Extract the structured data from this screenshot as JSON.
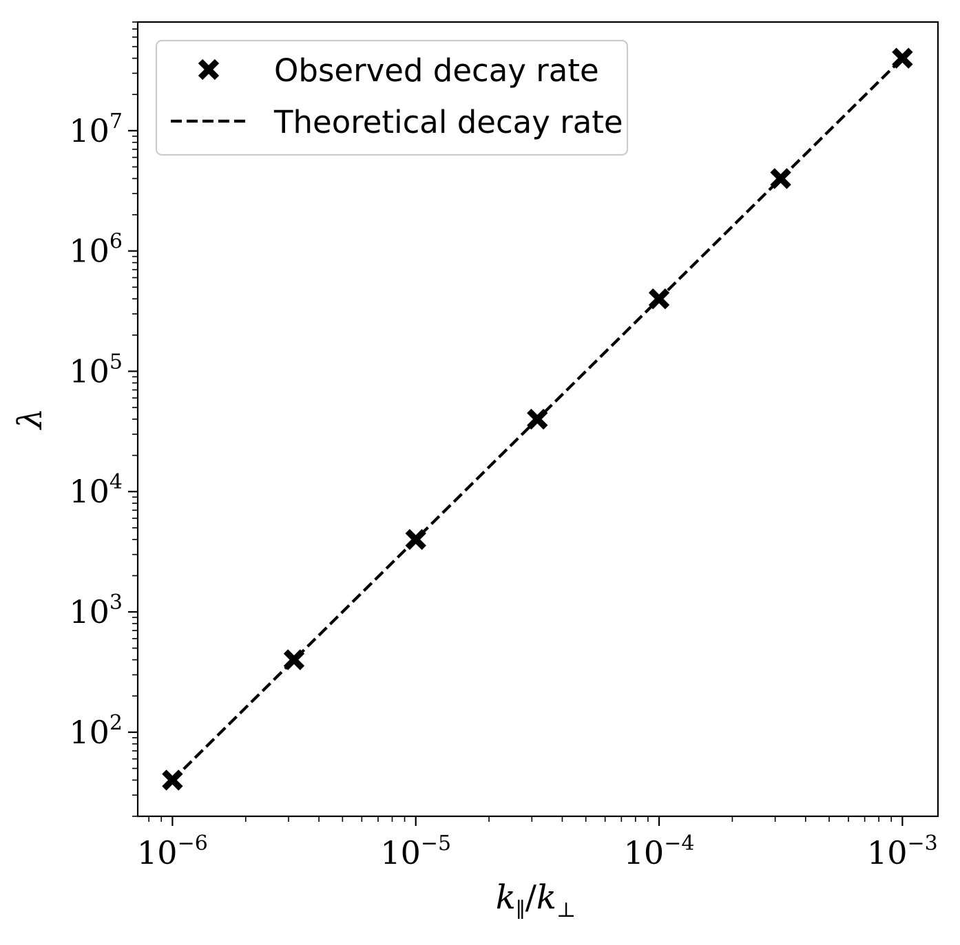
{
  "chart_data": {
    "type": "line",
    "xlabel": {
      "var1": "k",
      "sub1": "∥",
      "sep": "/",
      "var2": "k",
      "sub2": "⊥"
    },
    "ylabel": "λ",
    "xscale": "log",
    "yscale": "log",
    "xlim": [
      7.2e-07,
      0.0014
    ],
    "ylim": [
      20,
      80000000.0
    ],
    "grid": false,
    "legend_position": "top-left",
    "x_ticks": [
      {
        "value": 1e-06,
        "base": "10",
        "exp": "−6"
      },
      {
        "value": 1e-05,
        "base": "10",
        "exp": "−5"
      },
      {
        "value": 0.0001,
        "base": "10",
        "exp": "−4"
      },
      {
        "value": 0.001,
        "base": "10",
        "exp": "−3"
      }
    ],
    "y_ticks": [
      {
        "value": 100.0,
        "base": "10",
        "exp": "2"
      },
      {
        "value": 1000.0,
        "base": "10",
        "exp": "3"
      },
      {
        "value": 10000.0,
        "base": "10",
        "exp": "4"
      },
      {
        "value": 100000.0,
        "base": "10",
        "exp": "5"
      },
      {
        "value": 1000000.0,
        "base": "10",
        "exp": "6"
      },
      {
        "value": 10000000.0,
        "base": "10",
        "exp": "7"
      }
    ],
    "series": [
      {
        "name": "Observed decay rate",
        "style": "marker-x",
        "color": "#000000",
        "x": [
          1e-06,
          3.16e-06,
          1e-05,
          3.16e-05,
          0.0001,
          0.000316,
          0.001
        ],
        "y": [
          40,
          400,
          4000,
          40000,
          400000,
          4000000,
          40000000
        ]
      },
      {
        "name": "Theoretical decay rate",
        "style": "dashed-line",
        "color": "#000000",
        "x": [
          1e-06,
          0.001
        ],
        "y": [
          40,
          40000000
        ]
      }
    ]
  }
}
